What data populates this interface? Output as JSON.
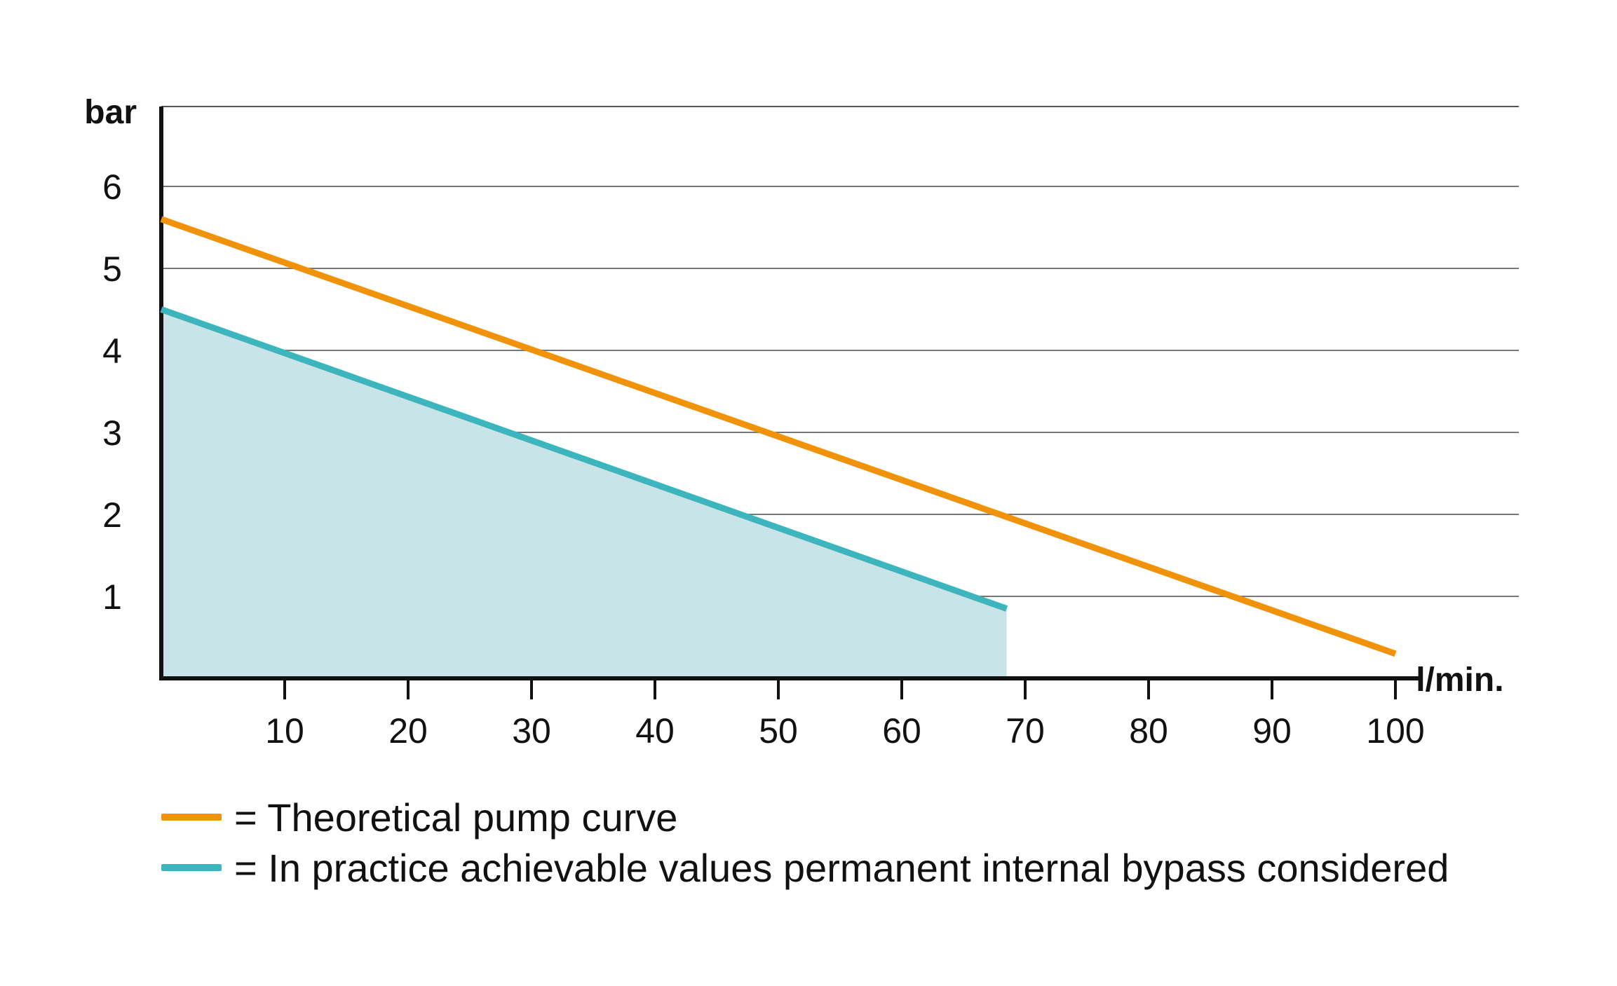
{
  "chart_data": {
    "type": "line",
    "xlabel": "l/min.",
    "ylabel": "bar",
    "xlim": [
      0,
      110
    ],
    "ylim": [
      0,
      7
    ],
    "xticks": [
      10,
      20,
      30,
      40,
      50,
      60,
      70,
      80,
      90,
      100
    ],
    "yticks": [
      1,
      2,
      3,
      4,
      5,
      6
    ],
    "grid": "horizontal",
    "legend_position": "bottom-left",
    "series": [
      {
        "name": "= Theoretical pump curve",
        "color": "#F0920A",
        "x": [
          0,
          100
        ],
        "y": [
          5.6,
          0.3
        ]
      },
      {
        "name": "= In practice achievable values permanent internal bypass considered",
        "color": "#3DB5BD",
        "fill_color": "#C8E4E8",
        "filled": true,
        "x": [
          0,
          68.5
        ],
        "y": [
          4.5,
          0.85
        ]
      }
    ]
  }
}
